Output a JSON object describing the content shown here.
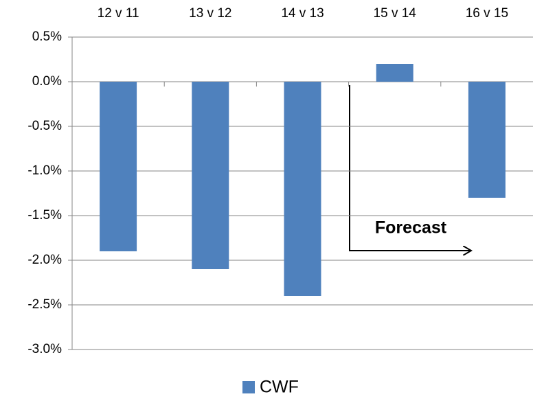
{
  "chart_data": {
    "type": "bar",
    "categories": [
      "12 v 11",
      "13 v 12",
      "14 v 13",
      "15 v 14",
      "16 v 15"
    ],
    "series": [
      {
        "name": "CWF",
        "color": "#4f81bd",
        "values": [
          -1.9,
          -2.1,
          -2.4,
          0.2,
          -1.3
        ]
      }
    ],
    "ylim": [
      -3.0,
      0.5
    ],
    "yticks": [
      {
        "value": -3.0,
        "label": "-3.0%"
      },
      {
        "value": -2.5,
        "label": "-2.5%"
      },
      {
        "value": -2.0,
        "label": "-2.0%"
      },
      {
        "value": -1.5,
        "label": "-1.5%"
      },
      {
        "value": -1.0,
        "label": "-1.0%"
      },
      {
        "value": -0.5,
        "label": "-0.5%"
      },
      {
        "value": 0.0,
        "label": "0.0%"
      },
      {
        "value": 0.5,
        "label": "0.5%"
      }
    ],
    "grid": true,
    "legend": "bottom",
    "annotation": "Forecast"
  }
}
